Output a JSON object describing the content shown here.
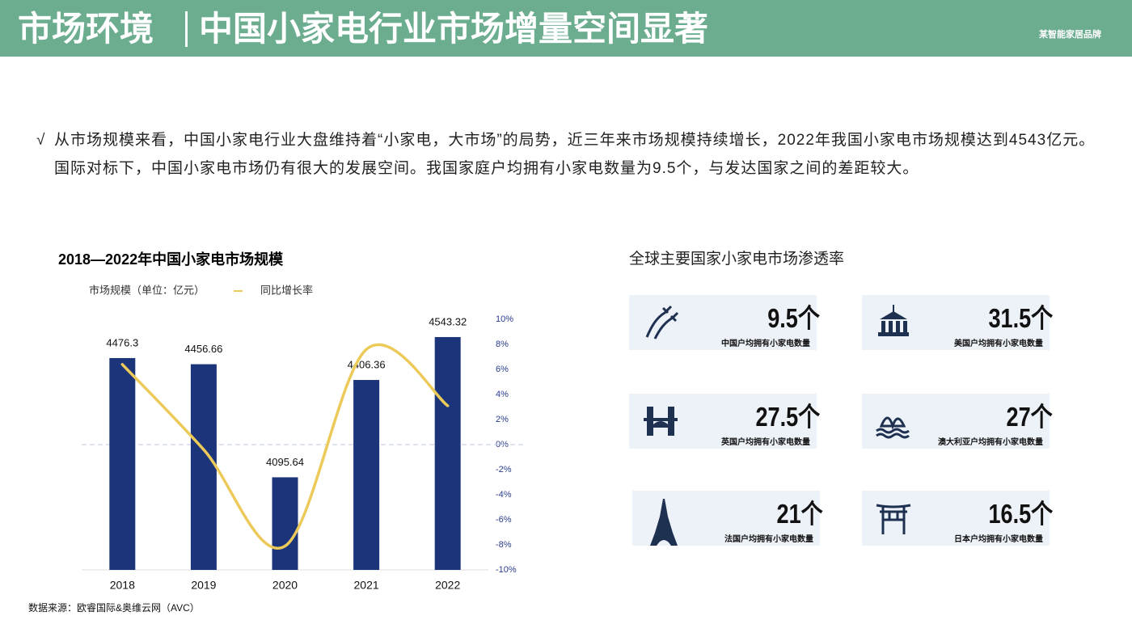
{
  "header": {
    "section": "市场环境",
    "title": "中国小家电行业市场增量空间显著",
    "brand": "某智能家居品牌"
  },
  "intro": {
    "bullet": "√",
    "paragraphs": [
      "从市场规模来看，中国小家电行业大盘维持着“小家电，大市场”的局势，近三年来市场规模持续增长，2022年我国小家电市场规模达到4543亿元。",
      "国际对标下，中国小家电市场仍有很大的发展空间。我国家庭户均拥有小家电数量为9.5个，与发达国家之间的差距较大。"
    ]
  },
  "chart_data": {
    "type": "bar",
    "title": "2018—2022年中国小家电市场规模",
    "categories": [
      "2018",
      "2019",
      "2020",
      "2021",
      "2022"
    ],
    "series": [
      {
        "name": "市场规模（单位：亿元）",
        "color": "#1c357a",
        "values": [
          4476.3,
          4456.66,
          4095.64,
          4406.36,
          4543.32
        ]
      },
      {
        "name": "同比增长率",
        "type": "line",
        "axis": "y2",
        "color": "#ecca5a",
        "values": [
          6.4,
          -0.4,
          -8.1,
          7.6,
          3.1
        ]
      }
    ],
    "ylim": [
      3800,
      4600
    ],
    "y2lim": [
      -10,
      10
    ],
    "y2ticks": [
      {
        "value": 10,
        "label": "10%"
      },
      {
        "value": 8,
        "label": "8%"
      },
      {
        "value": 6,
        "label": "6%"
      },
      {
        "value": 4,
        "label": "4%"
      },
      {
        "value": 2,
        "label": "2%"
      },
      {
        "value": 0,
        "label": "0%"
      },
      {
        "value": -2,
        "label": "-2%"
      },
      {
        "value": -4,
        "label": "-4%"
      },
      {
        "value": -6,
        "label": "-6%"
      },
      {
        "value": -8,
        "label": "-8%"
      },
      {
        "value": -10,
        "label": "-10%"
      }
    ],
    "source": "数据来源：欧睿国际&奥维云网（AVC）"
  },
  "penetration": {
    "title": "全球主要国家小家电市场渗透率",
    "cards": [
      {
        "value": "9.5个",
        "label": "中国户均拥有小家电数量"
      },
      {
        "value": "31.5个",
        "label": "美国户均拥有小家电数量"
      },
      {
        "value": "27.5个",
        "label": "英国户均拥有小家电数量"
      },
      {
        "value": "27个",
        "label": "澳大利亚户均拥有小家电数量"
      },
      {
        "value": "21个",
        "label": "法国户均拥有小家电数量"
      },
      {
        "value": "16.5个",
        "label": "日本户均拥有小家电数量"
      }
    ]
  }
}
